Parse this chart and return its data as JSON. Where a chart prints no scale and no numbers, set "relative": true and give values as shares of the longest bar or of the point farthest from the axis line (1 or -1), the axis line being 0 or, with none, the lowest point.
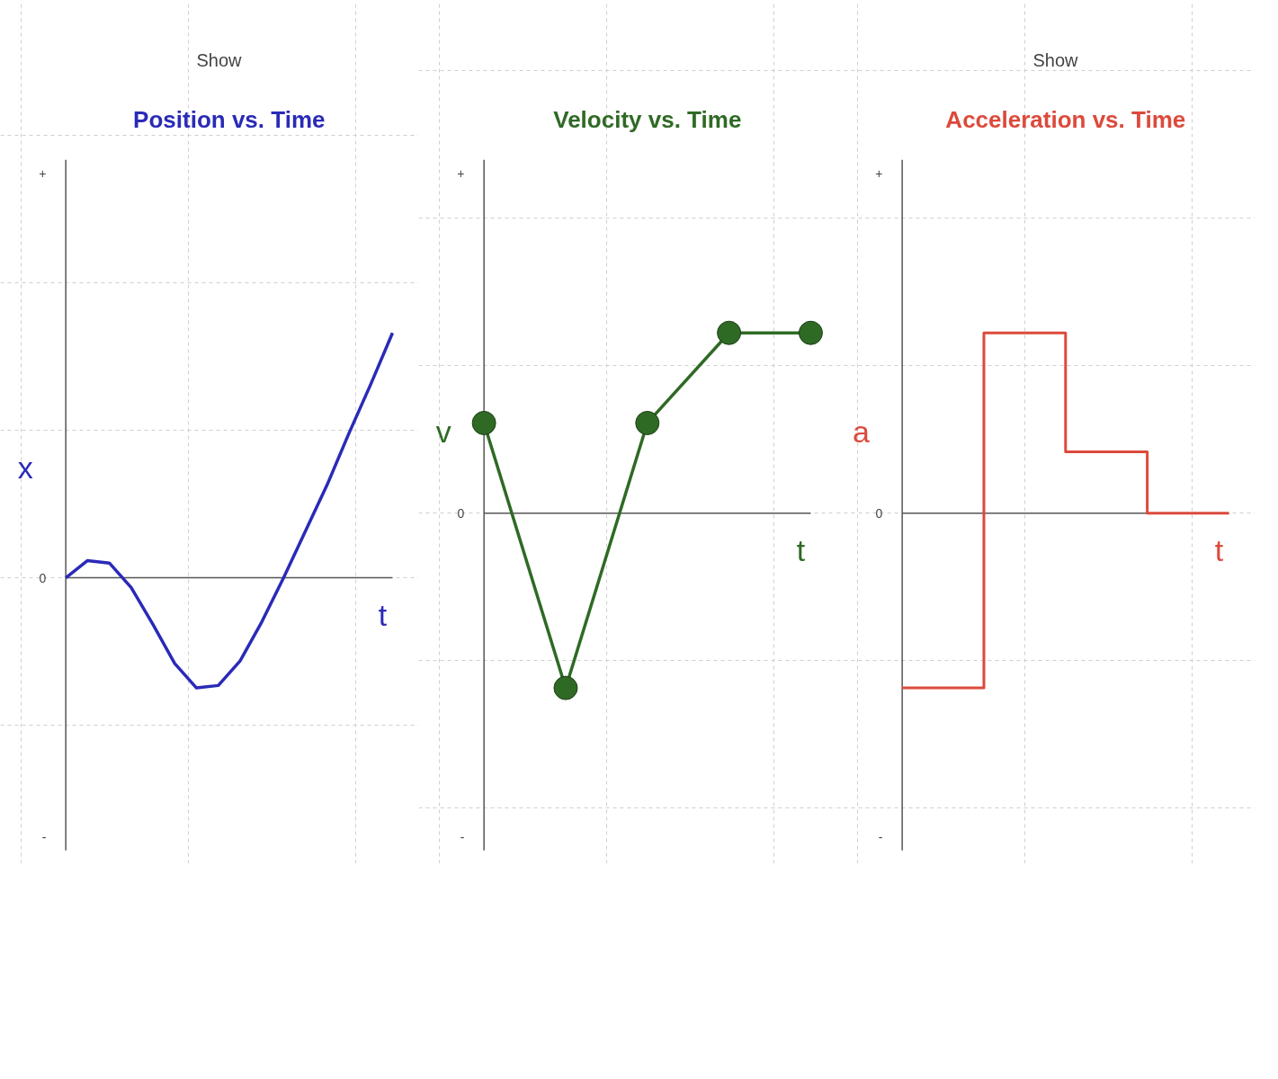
{
  "chart_data": [
    {
      "type": "line",
      "title": "Position vs. Time",
      "subtitle": "Show",
      "xlabel": "t",
      "ylabel": "x",
      "relative": true,
      "grid": true,
      "categories": [
        null,
        null,
        null,
        null,
        null,
        null,
        null,
        null,
        null,
        null,
        null,
        null,
        null,
        null,
        null,
        null
      ],
      "series": [
        {
          "color": "#2a2ab8",
          "values": [
            0,
            0.07,
            0.06,
            -0.04,
            -0.19,
            -0.35,
            -0.45,
            -0.44,
            -0.34,
            -0.18,
            0,
            0.19,
            0.38,
            0.59,
            0.79,
            1
          ]
        }
      ],
      "annotations": [
        "+",
        "0",
        "-"
      ]
    },
    {
      "type": "line",
      "title": "Velocity vs. Time",
      "xlabel": "t",
      "ylabel": "v",
      "relative": true,
      "grid": true,
      "marker": "circle",
      "categories": [
        null,
        null,
        null,
        null,
        null
      ],
      "series": [
        {
          "color": "#2f6a25",
          "values": [
            0.5,
            -0.97,
            0.5,
            1,
            1
          ]
        }
      ],
      "annotations": [
        "+",
        "0",
        "-"
      ]
    },
    {
      "type": "step",
      "title": "Acceleration vs. Time",
      "subtitle": "Show",
      "xlabel": "t",
      "ylabel": "a",
      "relative": true,
      "grid": true,
      "categories": [
        null,
        null,
        null,
        null,
        null
      ],
      "series": [
        {
          "color": "#dc4a3c",
          "values": [
            -0.97,
            1,
            0.34,
            0,
            0
          ]
        }
      ],
      "annotations": [
        "+",
        "0",
        "-"
      ]
    }
  ]
}
